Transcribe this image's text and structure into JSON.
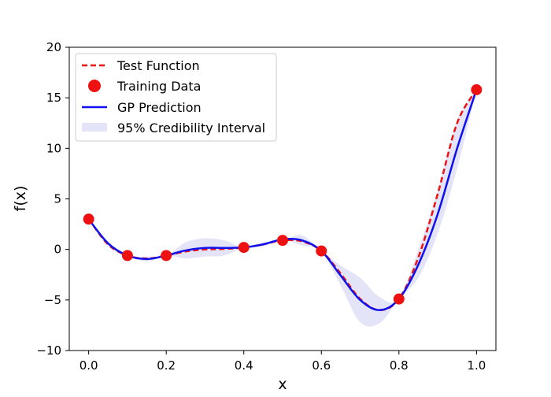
{
  "chart_data": {
    "type": "line",
    "xlabel": "x",
    "ylabel": "f(x)",
    "xlim": [
      -0.05,
      1.05
    ],
    "ylim": [
      -10,
      20
    ],
    "xticks": [
      "0.0",
      "0.2",
      "0.4",
      "0.6",
      "0.8",
      "1.0"
    ],
    "yticks": [
      "−10",
      "−5",
      "0",
      "5",
      "10",
      "15",
      "20"
    ],
    "grid": false,
    "legend_position": "top-left",
    "legend": [
      {
        "label": "Test Function",
        "kind": "dashed-line",
        "color": "#ee1111"
      },
      {
        "label": "Training Data",
        "kind": "marker",
        "color": "#ee1111"
      },
      {
        "label": "GP Prediction",
        "kind": "solid-line",
        "color": "#1010ee"
      },
      {
        "label": "95% Credibility Interval",
        "kind": "band",
        "color": "#e4e4f8"
      }
    ],
    "series": [
      {
        "name": "Test Function",
        "style": "dashed",
        "color": "#ee1111",
        "x": [
          0.0,
          0.05,
          0.1,
          0.15,
          0.2,
          0.25,
          0.3,
          0.35,
          0.4,
          0.45,
          0.5,
          0.55,
          0.6,
          0.65,
          0.7,
          0.75,
          0.8,
          0.85,
          0.9,
          0.95,
          1.0
        ],
        "y": [
          3.0,
          0.5,
          -0.6,
          -0.9,
          -0.6,
          -0.2,
          0.0,
          0.05,
          0.2,
          0.5,
          0.9,
          0.8,
          -0.15,
          -2.4,
          -4.9,
          -6.0,
          -4.9,
          -0.8,
          5.5,
          12.5,
          15.8
        ]
      },
      {
        "name": "Training Data",
        "style": "markers",
        "color": "#ee1111",
        "x": [
          0.0,
          0.1,
          0.2,
          0.4,
          0.5,
          0.6,
          0.8,
          1.0
        ],
        "y": [
          3.0,
          -0.6,
          -0.6,
          0.2,
          0.9,
          -0.15,
          -4.9,
          15.8
        ]
      },
      {
        "name": "GP Prediction",
        "style": "solid",
        "color": "#1010ee",
        "x": [
          0.0,
          0.05,
          0.1,
          0.15,
          0.2,
          0.25,
          0.3,
          0.35,
          0.4,
          0.45,
          0.5,
          0.55,
          0.6,
          0.65,
          0.7,
          0.75,
          0.8,
          0.85,
          0.9,
          0.95,
          1.0
        ],
        "y": [
          3.0,
          0.6,
          -0.6,
          -0.95,
          -0.6,
          -0.1,
          0.15,
          0.15,
          0.2,
          0.5,
          1.0,
          0.9,
          -0.15,
          -2.6,
          -5.0,
          -6.0,
          -4.9,
          -1.5,
          3.5,
          10.0,
          15.8
        ]
      },
      {
        "name": "95% Credibility Interval",
        "style": "band",
        "color": "#e4e4f8",
        "x": [
          0.0,
          0.05,
          0.1,
          0.15,
          0.2,
          0.25,
          0.3,
          0.35,
          0.4,
          0.45,
          0.5,
          0.55,
          0.6,
          0.65,
          0.7,
          0.75,
          0.8,
          0.85,
          0.9,
          0.95,
          1.0
        ],
        "lower": [
          3.0,
          0.4,
          -0.6,
          -1.2,
          -0.6,
          -0.9,
          -0.7,
          -0.6,
          0.2,
          0.3,
          0.9,
          0.4,
          -0.15,
          -3.6,
          -7.2,
          -7.3,
          -4.9,
          -2.8,
          1.6,
          8.0,
          15.8
        ],
        "upper": [
          3.0,
          0.8,
          -0.6,
          -0.7,
          -0.6,
          0.7,
          1.1,
          0.9,
          0.2,
          0.7,
          0.9,
          1.4,
          -0.15,
          -1.6,
          -2.8,
          -4.7,
          -4.9,
          0.0,
          5.8,
          12.8,
          15.8
        ]
      }
    ]
  }
}
